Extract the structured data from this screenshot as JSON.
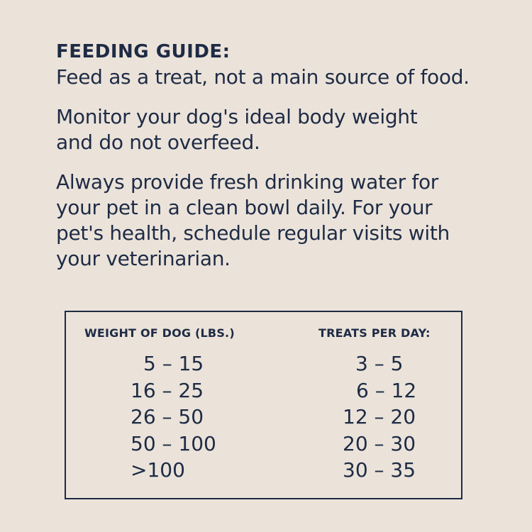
{
  "guide": {
    "heading": "FEEDING GUIDE:",
    "paragraphs": [
      "Feed as a treat, not a main source of food.",
      "Monitor your dog's ideal body weight and do not overfeed.",
      "Always provide fresh drinking water for your pet in a clean bowl daily. For your pet's health, schedule regular visits with your veterinarian."
    ]
  },
  "table": {
    "headers": {
      "weight": "WEIGHT OF DOG (LBS.)",
      "treats": "TREATS PER DAY:"
    },
    "rows": [
      {
        "weight": "5 – 15",
        "treats": "3 – 5"
      },
      {
        "weight": "16 – 25",
        "treats": "6 – 12"
      },
      {
        "weight": "26 – 50",
        "treats": "12 – 20"
      },
      {
        "weight": "50 – 100",
        "treats": "20 – 30"
      },
      {
        "weight": ">100",
        "treats": "30 – 35"
      }
    ]
  },
  "colors": {
    "background": "#ebe3da",
    "text": "#1e2b45"
  }
}
